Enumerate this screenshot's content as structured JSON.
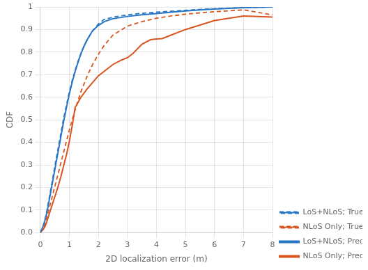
{
  "chart_data": {
    "type": "line",
    "xlabel": "2D localization error (m)",
    "ylabel": "CDF",
    "xlim": [
      0,
      8
    ],
    "ylim": [
      0,
      1.0
    ],
    "xticks": [
      0,
      1,
      2,
      3,
      4,
      5,
      6,
      7,
      8
    ],
    "yticks": [
      {
        "value": 0,
        "label": "0.0"
      },
      0.1,
      0.2,
      0.3,
      0.4,
      0.5,
      0.6,
      0.7,
      0.8,
      0.9,
      1
    ],
    "grid": true,
    "legend": "lower right",
    "series": [
      {
        "name": "LoS+NLoS; True",
        "color": "#2776C6",
        "line_style": "dashed",
        "x": [
          0.0,
          0.05,
          0.1,
          0.15,
          0.2,
          0.25,
          0.3,
          0.35,
          0.4,
          0.5,
          0.6,
          0.7,
          0.8,
          0.9,
          1.0,
          1.1,
          1.2,
          1.3,
          1.4,
          1.5,
          1.6,
          1.7,
          1.8,
          2.0,
          2.2,
          2.5,
          3.0,
          3.5,
          4.0,
          4.5,
          5.0,
          5.5,
          6.0,
          7.0,
          8.0
        ],
        "values": [
          0.0,
          0.015,
          0.03,
          0.055,
          0.08,
          0.115,
          0.15,
          0.185,
          0.22,
          0.295,
          0.365,
          0.435,
          0.505,
          0.565,
          0.625,
          0.675,
          0.72,
          0.76,
          0.795,
          0.825,
          0.85,
          0.873,
          0.893,
          0.925,
          0.945,
          0.955,
          0.965,
          0.972,
          0.977,
          0.981,
          0.985,
          0.989,
          0.992,
          0.997,
          1.0
        ]
      },
      {
        "name": "NLoS Only; True",
        "color": "#D9541E",
        "line_style": "dashed",
        "x": [
          0.0,
          0.05,
          0.1,
          0.15,
          0.2,
          0.25,
          0.3,
          0.4,
          0.5,
          0.6,
          0.7,
          0.8,
          0.9,
          1.0,
          1.2,
          1.4,
          1.6,
          1.8,
          2.0,
          2.2,
          2.5,
          3.0,
          3.5,
          4.0,
          4.5,
          5.0,
          5.5,
          6.0,
          7.0,
          8.0
        ],
        "values": [
          0.0,
          0.01,
          0.02,
          0.035,
          0.055,
          0.08,
          0.105,
          0.155,
          0.205,
          0.255,
          0.305,
          0.355,
          0.405,
          0.455,
          0.545,
          0.625,
          0.69,
          0.745,
          0.79,
          0.83,
          0.875,
          0.915,
          0.935,
          0.95,
          0.96,
          0.968,
          0.974,
          0.979,
          0.987,
          0.965
        ]
      },
      {
        "name": "LoS+NLoS; Pred",
        "color": "#2776C6",
        "line_style": "solid",
        "x": [
          0.0,
          0.05,
          0.1,
          0.15,
          0.2,
          0.25,
          0.3,
          0.35,
          0.4,
          0.5,
          0.6,
          0.7,
          0.8,
          0.9,
          1.0,
          1.1,
          1.2,
          1.3,
          1.4,
          1.5,
          1.6,
          1.8,
          2.0,
          2.2,
          2.5,
          3.0,
          3.5,
          4.0,
          4.5,
          5.0,
          5.5,
          6.0,
          7.0,
          8.0
        ],
        "values": [
          0.0,
          0.015,
          0.03,
          0.05,
          0.075,
          0.105,
          0.14,
          0.175,
          0.21,
          0.28,
          0.35,
          0.42,
          0.49,
          0.555,
          0.615,
          0.668,
          0.715,
          0.755,
          0.793,
          0.825,
          0.852,
          0.895,
          0.918,
          0.935,
          0.948,
          0.958,
          0.965,
          0.971,
          0.977,
          0.982,
          0.987,
          0.991,
          0.997,
          1.0
        ]
      },
      {
        "name": "NLoS Only; Pred",
        "color": "#D9541E",
        "line_style": "solid",
        "x": [
          0.0,
          0.05,
          0.1,
          0.15,
          0.2,
          0.25,
          0.3,
          0.4,
          0.5,
          0.6,
          0.7,
          0.8,
          0.85,
          0.9,
          1.0,
          1.05,
          1.1,
          1.2,
          1.4,
          1.6,
          1.8,
          2.0,
          2.2,
          2.5,
          2.8,
          3.0,
          3.2,
          3.5,
          3.8,
          4.0,
          4.2,
          4.5,
          5.0,
          5.5,
          6.0,
          7.0,
          8.0
        ],
        "values": [
          0.0,
          0.008,
          0.015,
          0.025,
          0.04,
          0.06,
          0.08,
          0.12,
          0.16,
          0.2,
          0.245,
          0.295,
          0.32,
          0.345,
          0.405,
          0.44,
          0.475,
          0.555,
          0.6,
          0.635,
          0.665,
          0.695,
          0.715,
          0.745,
          0.765,
          0.775,
          0.795,
          0.835,
          0.855,
          0.858,
          0.86,
          0.875,
          0.9,
          0.92,
          0.94,
          0.96,
          0.955
        ]
      }
    ]
  }
}
